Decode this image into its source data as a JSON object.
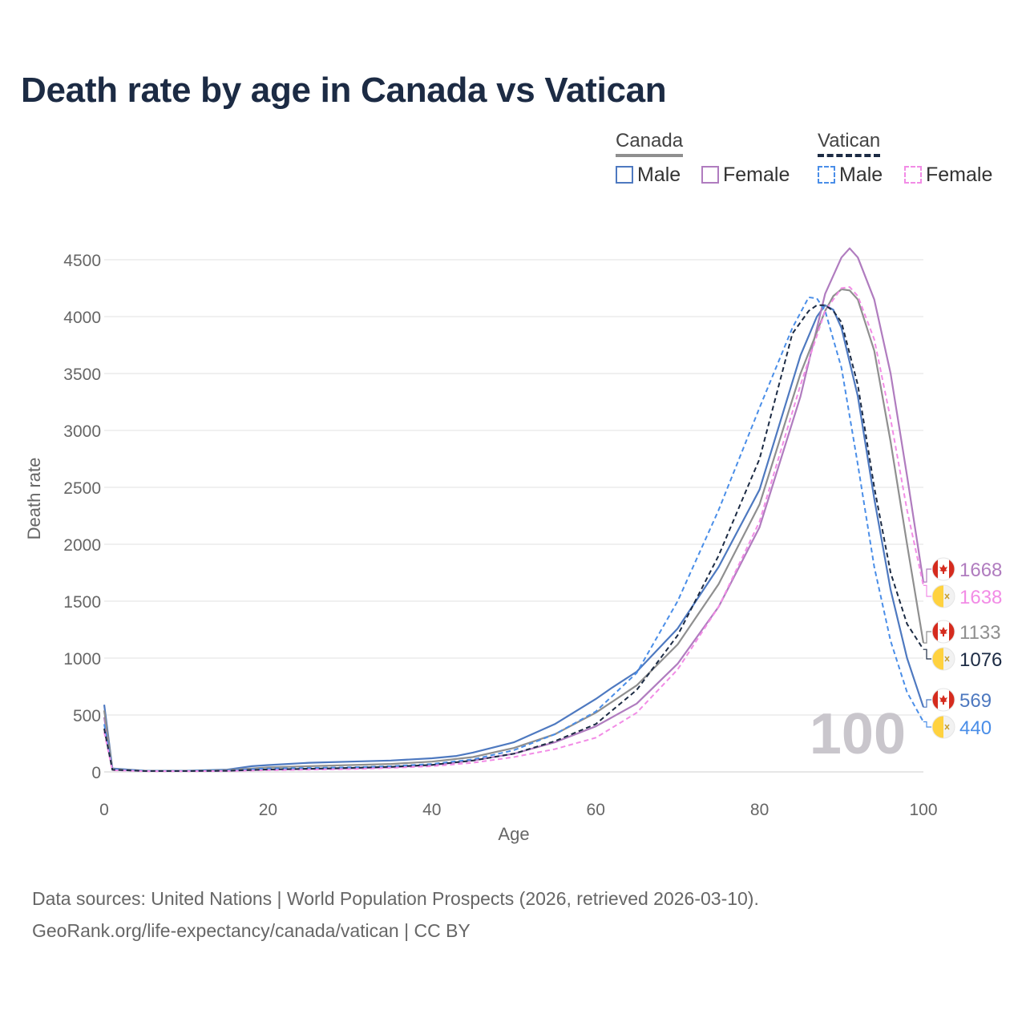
{
  "title": "Death rate by age in Canada vs Vatican",
  "legend": {
    "groups": [
      {
        "name": "Canada",
        "style": "solid",
        "items": [
          {
            "label": "Male",
            "color": "#4e79c0"
          },
          {
            "label": "Female",
            "color": "#b07cbf"
          }
        ]
      },
      {
        "name": "Vatican",
        "style": "dashed",
        "items": [
          {
            "label": "Male",
            "color": "#4a8ee8"
          },
          {
            "label": "Female",
            "color": "#f28ce6"
          }
        ]
      }
    ]
  },
  "year_watermark": "100",
  "footer": {
    "line1": "Data sources: United Nations | World Population Prospects (2026, retrieved 2026-03-10).",
    "line2": "GeoRank.org/life-expectancy/canada/vatican | CC BY"
  },
  "chart_data": {
    "type": "line",
    "title": "Death rate by age in Canada vs Vatican",
    "xlabel": "Age",
    "ylabel": "Death rate",
    "xlim": [
      0,
      100
    ],
    "ylim": [
      -100,
      4700
    ],
    "xticks": [
      0,
      20,
      40,
      60,
      80,
      100
    ],
    "yticks": [
      0,
      500,
      1000,
      1500,
      2000,
      2500,
      3000,
      3500,
      4000,
      4500
    ],
    "grid": true,
    "series": [
      {
        "name": "Canada Male",
        "country": "Canada",
        "sex": "Male",
        "color": "#4e79c0",
        "dash": false,
        "end_value": "569",
        "x": [
          0,
          1,
          5,
          10,
          15,
          18,
          20,
          25,
          30,
          35,
          40,
          43,
          45,
          50,
          55,
          60,
          62,
          65,
          70,
          75,
          80,
          85,
          87,
          88,
          89,
          90,
          92,
          94,
          96,
          98,
          100
        ],
        "y": [
          590,
          30,
          10,
          10,
          20,
          50,
          60,
          80,
          90,
          100,
          120,
          140,
          170,
          260,
          420,
          640,
          740,
          880,
          1260,
          1800,
          2480,
          3660,
          4000,
          4100,
          4060,
          3900,
          3300,
          2400,
          1600,
          1000,
          569
        ]
      },
      {
        "name": "Canada Female",
        "country": "Canada",
        "sex": "Female",
        "color": "#b07cbf",
        "dash": false,
        "end_value": "1668",
        "x": [
          0,
          1,
          5,
          10,
          15,
          20,
          25,
          30,
          35,
          40,
          45,
          50,
          55,
          60,
          65,
          70,
          75,
          80,
          85,
          88,
          90,
          91,
          92,
          94,
          96,
          98,
          100
        ],
        "y": [
          480,
          20,
          8,
          8,
          10,
          20,
          25,
          30,
          40,
          60,
          100,
          160,
          260,
          400,
          600,
          950,
          1450,
          2150,
          3300,
          4200,
          4520,
          4600,
          4520,
          4150,
          3500,
          2600,
          1668
        ]
      },
      {
        "name": "Canada Both",
        "country": "Canada",
        "sex": "Both",
        "color": "#8f8f8f",
        "dash": false,
        "end_value": "1133",
        "x": [
          0,
          1,
          5,
          10,
          15,
          20,
          25,
          30,
          35,
          40,
          45,
          50,
          55,
          60,
          65,
          70,
          75,
          80,
          85,
          88,
          89,
          90,
          91,
          92,
          94,
          96,
          98,
          100
        ],
        "y": [
          540,
          25,
          9,
          9,
          15,
          40,
          50,
          60,
          70,
          90,
          130,
          210,
          330,
          520,
          760,
          1120,
          1650,
          2350,
          3500,
          4050,
          4180,
          4240,
          4230,
          4150,
          3700,
          2900,
          2000,
          1133
        ]
      },
      {
        "name": "Vatican Male",
        "country": "Vatican",
        "sex": "Male",
        "color": "#4a8ee8",
        "dash": true,
        "end_value": "440",
        "x": [
          0,
          1,
          5,
          10,
          15,
          20,
          25,
          30,
          35,
          40,
          45,
          50,
          55,
          60,
          65,
          70,
          75,
          80,
          84,
          86,
          87,
          88,
          90,
          92,
          94,
          96,
          98,
          100
        ],
        "y": [
          420,
          22,
          9,
          9,
          12,
          30,
          35,
          40,
          50,
          70,
          110,
          190,
          330,
          530,
          870,
          1500,
          2300,
          3200,
          3900,
          4170,
          4160,
          4050,
          3550,
          2700,
          1800,
          1150,
          700,
          440
        ]
      },
      {
        "name": "Vatican Female",
        "country": "Vatican",
        "sex": "Female",
        "color": "#f28ce6",
        "dash": true,
        "end_value": "1638",
        "x": [
          0,
          1,
          5,
          10,
          15,
          20,
          25,
          30,
          35,
          40,
          45,
          50,
          55,
          60,
          65,
          70,
          75,
          80,
          85,
          88,
          90,
          91,
          92,
          94,
          96,
          98,
          100
        ],
        "y": [
          350,
          15,
          6,
          6,
          8,
          15,
          20,
          25,
          35,
          50,
          80,
          130,
          200,
          300,
          520,
          900,
          1450,
          2200,
          3400,
          4050,
          4250,
          4260,
          4180,
          3800,
          3100,
          2300,
          1638
        ]
      },
      {
        "name": "Vatican Both",
        "country": "Vatican",
        "sex": "Both",
        "color": "#1c2b44",
        "dash": true,
        "end_value": "1076",
        "x": [
          0,
          1,
          5,
          10,
          15,
          20,
          25,
          30,
          35,
          40,
          45,
          50,
          55,
          60,
          65,
          70,
          75,
          80,
          84,
          86,
          87,
          88,
          89,
          90,
          92,
          94,
          96,
          98,
          100
        ],
        "y": [
          380,
          18,
          8,
          8,
          10,
          22,
          28,
          35,
          45,
          62,
          100,
          160,
          270,
          420,
          720,
          1200,
          1900,
          2750,
          3850,
          4050,
          4100,
          4100,
          4050,
          3950,
          3400,
          2500,
          1750,
          1300,
          1076
        ]
      }
    ]
  }
}
